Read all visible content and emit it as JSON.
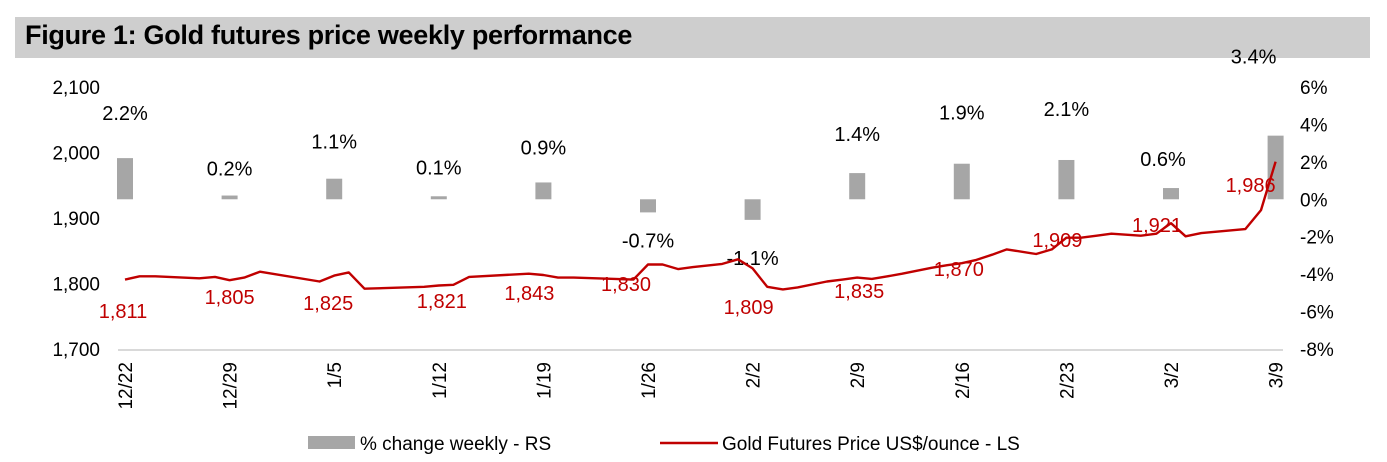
{
  "title": "Figure 1: Gold futures price weekly performance",
  "colors": {
    "line": "#c00000",
    "bar": "#a6a6a6",
    "title_bg": "#cecece",
    "axis": "#d9d9d9"
  },
  "chart_data": {
    "type": "bar+line",
    "title": "Figure 1: Gold futures price weekly performance",
    "categories": [
      "12/22",
      "12/29",
      "1/5",
      "1/12",
      "1/19",
      "1/26",
      "2/2",
      "2/9",
      "2/16",
      "2/23",
      "3/2",
      "3/9"
    ],
    "left_axis": {
      "ylim": [
        1700,
        2100
      ],
      "ticks": [
        2100,
        2000,
        1900,
        1800,
        1700
      ],
      "tick_labels": [
        "2,100",
        "2,000",
        "1,900",
        "1,800",
        "1,700"
      ]
    },
    "right_axis": {
      "ylim": [
        -8,
        6
      ],
      "ticks": [
        6,
        4,
        2,
        0,
        -2,
        -4,
        -6,
        -8
      ],
      "tick_labels": [
        "6%",
        "4%",
        "2%",
        "0%",
        "-2%",
        "-4%",
        "-6%",
        "-8%"
      ]
    },
    "series": [
      {
        "name": "% change weekly - RS",
        "type": "bar",
        "axis": "right",
        "values": [
          2.2,
          0.2,
          1.1,
          0.1,
          0.9,
          -0.7,
          -1.1,
          1.4,
          1.9,
          2.1,
          0.6,
          3.4
        ],
        "labels": [
          "2.2%",
          "0.2%",
          "1.1%",
          "0.1%",
          "0.9%",
          "-0.7%",
          "-1.1%",
          "1.4%",
          "1.9%",
          "2.1%",
          "0.6%",
          "3.4%"
        ]
      },
      {
        "name": "Gold Futures Price US$/ounce - LS",
        "type": "line",
        "axis": "left",
        "x": [
          0,
          0.14,
          0.29,
          0.71,
          0.86,
          1.0,
          1.14,
          1.29,
          1.86,
          2.0,
          2.14,
          2.29,
          2.86,
          3.0,
          3.14,
          3.29,
          3.86,
          4.0,
          4.14,
          4.29,
          4.86,
          5.0,
          5.14,
          5.29,
          5.43,
          5.71,
          5.86,
          6.0,
          6.14,
          6.29,
          6.43,
          6.71,
          6.86,
          7.0,
          7.14,
          7.29,
          7.43,
          7.71,
          7.86,
          8.0,
          8.14,
          8.29,
          8.43,
          8.71,
          8.86,
          9.0,
          9.14,
          9.29,
          9.43,
          9.71,
          9.86,
          10.0,
          10.14,
          10.29,
          10.71,
          10.86,
          11.0
        ],
        "values": [
          1806,
          1811,
          1811,
          1808,
          1810,
          1805,
          1809,
          1818,
          1803,
          1812,
          1817,
          1792,
          1795,
          1797,
          1798,
          1810,
          1815,
          1813,
          1809,
          1809,
          1806,
          1829,
          1829,
          1822,
          1825,
          1830,
          1837,
          1823,
          1795,
          1791,
          1794,
          1803,
          1806,
          1809,
          1807,
          1811,
          1815,
          1824,
          1828,
          1831,
          1836,
          1844,
          1852,
          1845,
          1852,
          1870,
          1870,
          1873,
          1876,
          1873,
          1876,
          1892,
          1872,
          1877,
          1883,
          1912,
          1986
        ],
        "labels": [
          "1,811",
          "1,805",
          "1,825",
          "1,821",
          "1,843",
          "1,830",
          "1,809",
          "1,835",
          "1,870",
          "1,909",
          "1,921",
          "1,986"
        ]
      }
    ],
    "legend": {
      "placement": "bottom",
      "items": [
        "% change weekly - RS",
        "Gold Futures Price US$/ounce - LS"
      ]
    }
  }
}
